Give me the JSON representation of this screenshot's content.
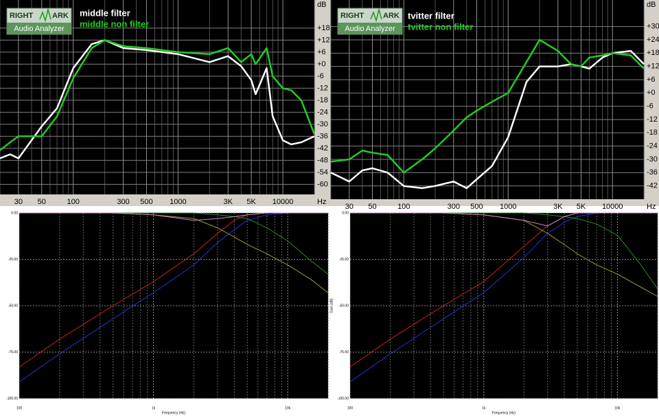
{
  "chart_data": [
    {
      "type": "line",
      "xscale": "log",
      "grid": true,
      "legend": "upper left",
      "logo": [
        "RIGHT",
        "ARK",
        "Audio Analyzer"
      ],
      "x_unit": "Hz",
      "y_unit": "dB",
      "xlim": [
        20,
        20000
      ],
      "ylim": [
        -65,
        32
      ],
      "xticks": [
        30,
        50,
        100,
        300,
        500,
        1000,
        {
          "value": 3000,
          "label": "3K"
        },
        {
          "value": 5000,
          "label": "5K"
        },
        10000
      ],
      "yticks": [
        -60,
        -54,
        -48,
        -42,
        -36,
        -30,
        -24,
        -18,
        -12,
        -6,
        {
          "value": 0,
          "label": "+0"
        },
        {
          "value": 6,
          "label": "+6"
        },
        {
          "value": 12,
          "label": "+12"
        },
        {
          "value": 18,
          "label": "+18"
        }
      ],
      "x": [
        20,
        25,
        30,
        40,
        50,
        70,
        100,
        150,
        200,
        300,
        500,
        1000,
        2000,
        3000,
        4000,
        5000,
        5500,
        7000,
        8000,
        10000,
        12000,
        15000,
        20000
      ],
      "series": [
        {
          "name": "middle filter",
          "color": "#ffffff",
          "values": [
            -47,
            -45,
            -47,
            -38,
            -31,
            -22,
            -2,
            10,
            12,
            8,
            7,
            5,
            1,
            4,
            -1,
            -8,
            -15,
            -2,
            -26,
            -38,
            -40,
            -39,
            -36
          ]
        },
        {
          "name": "middle non filter",
          "color": "#22cc22",
          "values": [
            -43,
            -39,
            -36,
            -36,
            -36,
            -26,
            -7,
            8,
            12,
            9,
            8,
            6,
            5,
            8,
            1,
            5,
            0,
            8,
            -6,
            -12,
            -13,
            -18,
            -35
          ]
        }
      ]
    },
    {
      "type": "line",
      "xscale": "log",
      "grid": true,
      "legend": "upper left",
      "logo": [
        "RIGHT",
        "ARK",
        "Audio Analyzer"
      ],
      "x_unit": "Hz",
      "y_unit": "dB",
      "xlim": [
        20,
        20000
      ],
      "ylim": [
        -48,
        42
      ],
      "xticks": [
        30,
        50,
        100,
        300,
        500,
        1000,
        {
          "value": 3000,
          "label": "3K"
        },
        {
          "value": 5000,
          "label": "5K"
        },
        10000
      ],
      "yticks": [
        -42,
        -36,
        -30,
        -24,
        -18,
        -12,
        -6,
        {
          "value": 0,
          "label": "+0"
        },
        {
          "value": 6,
          "label": "+6"
        },
        {
          "value": 12,
          "label": "+12"
        },
        {
          "value": 18,
          "label": "+18"
        },
        {
          "value": 24,
          "label": "+24"
        },
        {
          "value": 30,
          "label": "+30"
        }
      ],
      "x": [
        20,
        30,
        40,
        50,
        70,
        100,
        150,
        200,
        300,
        400,
        500,
        700,
        1000,
        1500,
        2000,
        3000,
        4000,
        5000,
        6000,
        8000,
        10000,
        15000,
        20000
      ],
      "series": [
        {
          "name": "tvitter filter",
          "color": "#ffffff",
          "values": [
            -36,
            -40,
            -35,
            -34,
            -36,
            -42,
            -43,
            -42,
            -40,
            -43,
            -39,
            -33,
            -20,
            5,
            12,
            12,
            13,
            12,
            11,
            16,
            18,
            19,
            13
          ]
        },
        {
          "name": "tvitter non filter",
          "color": "#22cc22",
          "values": [
            -31,
            -30,
            -26,
            -27,
            -28,
            -36,
            -30,
            -25,
            -17,
            -11,
            -8,
            -4,
            0,
            14,
            24,
            19,
            13,
            12,
            16,
            17,
            18,
            17,
            11
          ]
        }
      ]
    },
    {
      "type": "line",
      "xscale": "log",
      "grid": true,
      "xlabel": "Frequency (Hz)",
      "xlim": [
        100,
        20000
      ],
      "ylim": [
        -100,
        0
      ],
      "xticks": [
        100,
        {
          "value": 1000,
          "label": "1k"
        },
        {
          "value": 10000,
          "label": "10k"
        }
      ],
      "yticks": [
        {
          "value": -100,
          "label": "-100.00"
        },
        {
          "value": -75,
          "label": "-75.00"
        },
        {
          "value": -50,
          "label": "-50.00"
        },
        {
          "value": -25,
          "label": "-25.00"
        },
        {
          "value": 0,
          "label": "0.00"
        }
      ],
      "x": [
        100,
        200,
        500,
        1000,
        2000,
        3000,
        4000,
        5000,
        7000,
        10000,
        15000,
        20000
      ],
      "series": [
        {
          "color": "#cc2222",
          "values": [
            -83,
            -68,
            -50,
            -37,
            -22,
            -11,
            -4,
            -1,
            0,
            0,
            0,
            0
          ]
        },
        {
          "color": "#2233cc",
          "values": [
            -91,
            -76,
            -57,
            -43,
            -28,
            -16,
            -9,
            -4,
            -1,
            0,
            0,
            0
          ]
        },
        {
          "color": "#999933",
          "values": [
            0,
            0,
            0,
            -1,
            -3,
            -8,
            -13,
            -17,
            -22,
            -28,
            -36,
            -43
          ]
        },
        {
          "color": "#2a8a2a",
          "values": [
            0,
            0,
            0,
            0,
            0,
            -1,
            -2,
            -3,
            -8,
            -15,
            -26,
            -33
          ]
        },
        {
          "color": "#cc88cc",
          "values": [
            0,
            0,
            0,
            -1,
            -4,
            -3,
            -2,
            -1,
            0,
            0,
            0,
            0
          ]
        }
      ]
    },
    {
      "type": "line",
      "xscale": "log",
      "grid": true,
      "xlabel": "Frequency (Hz)",
      "ylabel": "Gain (dB)",
      "xlim": [
        100,
        20000
      ],
      "ylim": [
        -100,
        0
      ],
      "xticks": [
        100,
        {
          "value": 1000,
          "label": "1k"
        },
        {
          "value": 10000,
          "label": "10k"
        }
      ],
      "yticks": [
        {
          "value": -100,
          "label": "-100.00"
        },
        {
          "value": -75,
          "label": "-75.00"
        },
        {
          "value": -50,
          "label": "-50.00"
        },
        {
          "value": -25,
          "label": "-25.00"
        },
        {
          "value": 0,
          "label": "0.00"
        }
      ],
      "x": [
        100,
        200,
        500,
        1000,
        2000,
        3000,
        4000,
        5000,
        7000,
        10000,
        15000,
        20000
      ],
      "series": [
        {
          "color": "#cc2222",
          "values": [
            -83,
            -68,
            -50,
            -37,
            -18,
            -7,
            -2,
            0,
            0,
            0,
            0,
            0
          ]
        },
        {
          "color": "#2233cc",
          "values": [
            -91,
            -76,
            -57,
            -43,
            -24,
            -11,
            -5,
            -2,
            0,
            0,
            0,
            0
          ]
        },
        {
          "color": "#999933",
          "values": [
            0,
            0,
            0,
            -1,
            -4,
            -11,
            -17,
            -22,
            -28,
            -33,
            -40,
            -45
          ]
        },
        {
          "color": "#2a8a2a",
          "values": [
            0,
            0,
            0,
            0,
            0,
            -1,
            -2,
            -3,
            -6,
            -12,
            -28,
            -41
          ]
        },
        {
          "color": "#cc88cc",
          "values": [
            0,
            0,
            0,
            -1,
            -4,
            -7,
            -2,
            0,
            0,
            0,
            0,
            0
          ]
        }
      ]
    }
  ]
}
